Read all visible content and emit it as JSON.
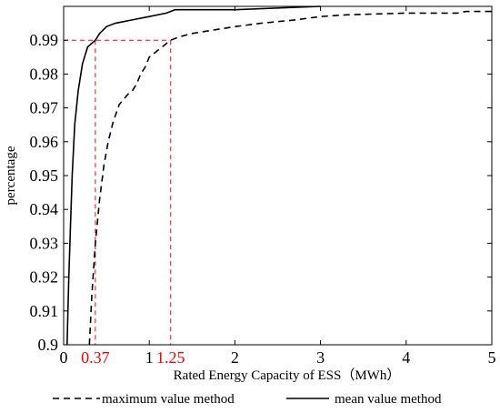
{
  "chart_data": {
    "type": "line",
    "xlabel": "Rated Energy Capacity of ESS（MWh）",
    "ylabel": "percentage",
    "xlim": [
      0,
      5
    ],
    "ylim": [
      0.9,
      1.0
    ],
    "x_ticks": [
      "0",
      "1",
      "2",
      "3",
      "4",
      "5"
    ],
    "y_ticks": [
      "0.9",
      "0.91",
      "0.92",
      "0.93",
      "0.94",
      "0.95",
      "0.96",
      "0.97",
      "0.98",
      "0.99"
    ],
    "grid": false,
    "legend_position": "bottom",
    "series": [
      {
        "name": "maximum value method",
        "style": "dashed",
        "color": "#000000",
        "points": [
          [
            0.3,
            0.9
          ],
          [
            0.33,
            0.915
          ],
          [
            0.37,
            0.93
          ],
          [
            0.42,
            0.943
          ],
          [
            0.47,
            0.953
          ],
          [
            0.52,
            0.96
          ],
          [
            0.58,
            0.966
          ],
          [
            0.65,
            0.971
          ],
          [
            0.75,
            0.974
          ],
          [
            0.8,
            0.975
          ],
          [
            0.85,
            0.977
          ],
          [
            0.9,
            0.98
          ],
          [
            0.95,
            0.982
          ],
          [
            1.0,
            0.985
          ],
          [
            1.1,
            0.987
          ],
          [
            1.2,
            0.989
          ],
          [
            1.25,
            0.99
          ],
          [
            1.35,
            0.991
          ],
          [
            1.5,
            0.992
          ],
          [
            1.75,
            0.993
          ],
          [
            2.0,
            0.994
          ],
          [
            2.3,
            0.995
          ],
          [
            2.7,
            0.996
          ],
          [
            3.0,
            0.997
          ],
          [
            3.3,
            0.9975
          ],
          [
            4.0,
            0.998
          ],
          [
            4.6,
            0.998
          ],
          [
            4.7,
            0.9985
          ],
          [
            5.0,
            0.9985
          ]
        ]
      },
      {
        "name": "mean value method",
        "style": "solid",
        "color": "#000000",
        "points": [
          [
            0.04,
            0.9
          ],
          [
            0.05,
            0.91
          ],
          [
            0.06,
            0.92
          ],
          [
            0.08,
            0.935
          ],
          [
            0.1,
            0.95
          ],
          [
            0.13,
            0.965
          ],
          [
            0.17,
            0.975
          ],
          [
            0.22,
            0.983
          ],
          [
            0.28,
            0.988
          ],
          [
            0.37,
            0.99
          ],
          [
            0.42,
            0.992
          ],
          [
            0.5,
            0.994
          ],
          [
            0.6,
            0.995
          ],
          [
            0.8,
            0.996
          ],
          [
            1.0,
            0.997
          ],
          [
            1.2,
            0.998
          ],
          [
            1.3,
            0.999
          ],
          [
            1.5,
            0.999
          ],
          [
            2.0,
            0.999
          ],
          [
            3.0,
            1.0
          ]
        ]
      }
    ],
    "annotations": [
      {
        "text": "0.37",
        "x": 0.37,
        "y": 0.99,
        "color": "#ff0000"
      },
      {
        "text": "1.25",
        "x": 1.25,
        "y": 0.99,
        "color": "#ff0000"
      }
    ]
  }
}
